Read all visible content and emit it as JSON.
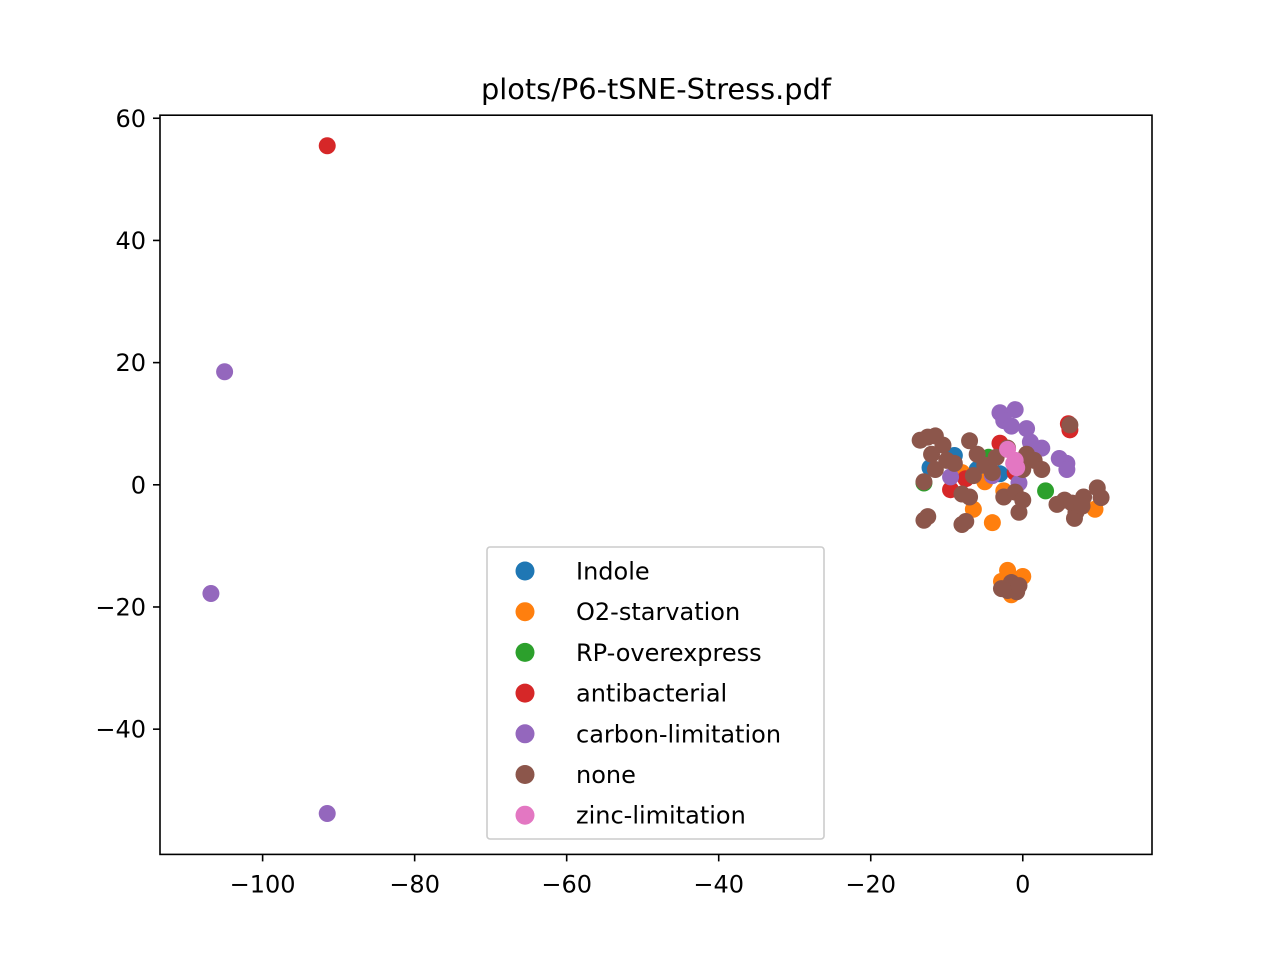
{
  "chart_data": {
    "type": "scatter",
    "title": "plots/P6-tSNE-Stress.pdf",
    "xlabel": "",
    "ylabel": "",
    "xlim": [
      -113.5,
      17
    ],
    "ylim": [
      -60.5,
      60.5
    ],
    "x_ticks": [
      -100,
      -80,
      -60,
      -40,
      -20,
      0
    ],
    "y_ticks": [
      -40,
      -20,
      0,
      20,
      40,
      60
    ],
    "x_tick_labels": [
      "−100",
      "−80",
      "−60",
      "−40",
      "−20",
      "0"
    ],
    "y_tick_labels": [
      "−40",
      "−20",
      "0",
      "20",
      "40",
      "60"
    ],
    "legend_position": "lower-center",
    "series": [
      {
        "name": "Indole",
        "color": "#1f77b4",
        "points": [
          [
            -12.2,
            2.8
          ],
          [
            -9,
            4.8
          ],
          [
            -6,
            2.5
          ],
          [
            -3,
            1.8
          ]
        ]
      },
      {
        "name": "O2-starvation",
        "color": "#ff7f0e",
        "points": [
          [
            -4,
            -6.2
          ],
          [
            -6.5,
            -4
          ],
          [
            -2.5,
            -1
          ],
          [
            -5,
            0.5
          ],
          [
            -8,
            2
          ],
          [
            9.5,
            -4
          ],
          [
            -2,
            -14
          ],
          [
            -0.5,
            -15.5
          ],
          [
            -1.5,
            -18
          ],
          [
            -2.8,
            -15.8
          ],
          [
            -1,
            -17
          ],
          [
            0,
            -15
          ]
        ]
      },
      {
        "name": "RP-overexpress",
        "color": "#2ca02c",
        "points": [
          [
            -13,
            0.3
          ],
          [
            3,
            -1
          ],
          [
            -4.5,
            4.5
          ]
        ]
      },
      {
        "name": "antibacterial",
        "color": "#d62728",
        "points": [
          [
            -91.5,
            55.5
          ],
          [
            -9.5,
            -0.8
          ],
          [
            -7.5,
            1
          ],
          [
            -3,
            6.8
          ],
          [
            6,
            10
          ],
          [
            6.2,
            9
          ],
          [
            -1,
            2
          ]
        ]
      },
      {
        "name": "carbon-limitation",
        "color": "#9467bd",
        "points": [
          [
            -105,
            18.5
          ],
          [
            -106.8,
            -17.8
          ],
          [
            -91.5,
            -53.8
          ],
          [
            -3,
            11.8
          ],
          [
            -1,
            12.3
          ],
          [
            -2.5,
            10.5
          ],
          [
            0.5,
            9.2
          ],
          [
            -1.5,
            9.6
          ],
          [
            2.5,
            6
          ],
          [
            1,
            7
          ],
          [
            4.8,
            4.3
          ],
          [
            5.8,
            3.5
          ],
          [
            5.8,
            2.5
          ],
          [
            -9.5,
            1.3
          ],
          [
            -0.5,
            0.3
          ],
          [
            -4,
            1.5
          ],
          [
            0.8,
            4.5
          ]
        ]
      },
      {
        "name": "none",
        "color": "#8c564b",
        "points": [
          [
            -13.5,
            7.3
          ],
          [
            -12.5,
            7.8
          ],
          [
            -11.5,
            8
          ],
          [
            -10.5,
            6.5
          ],
          [
            -12,
            5
          ],
          [
            -10,
            4
          ],
          [
            -11.5,
            2.5
          ],
          [
            -13,
            0.5
          ],
          [
            -7,
            7.2
          ],
          [
            -6,
            5
          ],
          [
            -5,
            3.2
          ],
          [
            -4,
            2
          ],
          [
            -3.5,
            4.5
          ],
          [
            -2,
            6
          ],
          [
            -1,
            3
          ],
          [
            0,
            2.5
          ],
          [
            1.5,
            4
          ],
          [
            2.5,
            2.5
          ],
          [
            0.5,
            5
          ],
          [
            -2.5,
            -2
          ],
          [
            -1,
            -1.2
          ],
          [
            0,
            -2.5
          ],
          [
            -0.5,
            -4.5
          ],
          [
            -7,
            -2
          ],
          [
            -8,
            -1.5
          ],
          [
            -12.5,
            -5.2
          ],
          [
            -13,
            -5.8
          ],
          [
            -8,
            -6.5
          ],
          [
            -7.5,
            -6
          ],
          [
            4.5,
            -3.2
          ],
          [
            5.5,
            -2.5
          ],
          [
            6.5,
            -3
          ],
          [
            7,
            -4.5
          ],
          [
            6.8,
            -5.5
          ],
          [
            8,
            -2
          ],
          [
            9.8,
            -0.5
          ],
          [
            10.3,
            -2.1
          ],
          [
            7.8,
            -3.5
          ],
          [
            6.2,
            9.8
          ],
          [
            -2.8,
            -17
          ],
          [
            -1.5,
            -16
          ],
          [
            -0.8,
            -17.5
          ],
          [
            -2,
            -17.3
          ],
          [
            -0.5,
            -16.5
          ],
          [
            -9,
            3.5
          ],
          [
            -6.5,
            1.5
          ]
        ]
      },
      {
        "name": "zinc-limitation",
        "color": "#e377c2",
        "points": [
          [
            -2,
            5.8
          ],
          [
            -1,
            4
          ],
          [
            -0.8,
            2.8
          ],
          [
            -1.2,
            3.5
          ]
        ]
      }
    ]
  }
}
